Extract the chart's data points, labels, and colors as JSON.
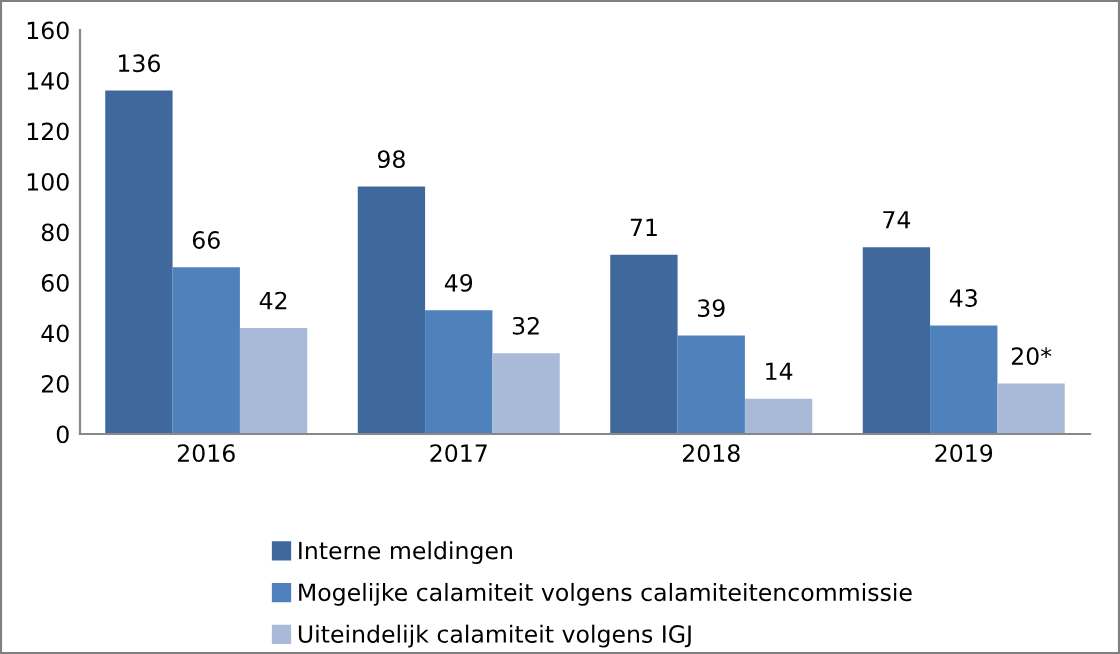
{
  "chart_data": {
    "type": "bar",
    "categories": [
      "2016",
      "2017",
      "2018",
      "2019"
    ],
    "series": [
      {
        "name": "Interne meldingen",
        "color": "#3f689d",
        "values": [
          136,
          98,
          71,
          74
        ],
        "value_labels": [
          "136",
          "98",
          "71",
          "74"
        ]
      },
      {
        "name": "Mogelijke calamiteit volgens calamiteitencommissie",
        "color": "#4f81bd",
        "values": [
          66,
          49,
          39,
          43
        ],
        "value_labels": [
          "66",
          "49",
          "39",
          "43"
        ]
      },
      {
        "name": "Uiteindelijk calamiteit volgens IGJ",
        "color": "#a9b9d8",
        "values": [
          42,
          32,
          14,
          20
        ],
        "value_labels": [
          "42",
          "32",
          "14",
          "20*"
        ]
      }
    ],
    "ylim": [
      0,
      160
    ],
    "yticks": [
      0,
      20,
      40,
      60,
      80,
      100,
      120,
      140,
      160
    ],
    "grid": false,
    "legend": "bottom"
  }
}
